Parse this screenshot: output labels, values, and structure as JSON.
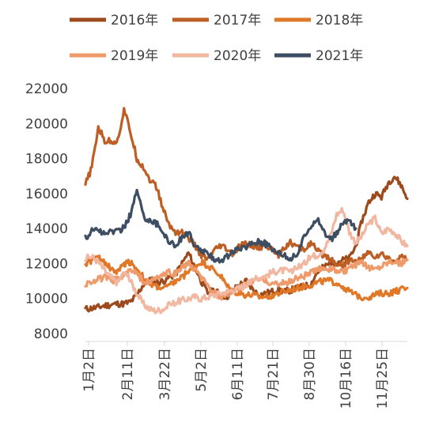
{
  "chart_data": {
    "type": "line",
    "title": "",
    "xlabel": "",
    "ylabel": "",
    "ylim": [
      8000,
      22000
    ],
    "yticks": [
      8000,
      10000,
      12000,
      14000,
      16000,
      18000,
      20000,
      22000
    ],
    "xticks": [
      "1月2日",
      "2月11日",
      "3月22日",
      "5月2日",
      "6月11日",
      "7月21日",
      "8月30日",
      "10月16日",
      "11月25日"
    ],
    "grid": false,
    "legend_position": "top",
    "x_positions": [
      0,
      1,
      2,
      3,
      4,
      5,
      6,
      7,
      8,
      9,
      10,
      11,
      12,
      13,
      14,
      15,
      16,
      17,
      18,
      19,
      20,
      21,
      22,
      23,
      24,
      25,
      26,
      27,
      28,
      29,
      30,
      31,
      32,
      33,
      34,
      35,
      36,
      37,
      38,
      39,
      40,
      41,
      42,
      43,
      44,
      45,
      46,
      47,
      48,
      49,
      50
    ],
    "series": [
      {
        "name": "2016年",
        "color": "#9C4A1C",
        "values": [
          9400,
          9450,
          9500,
          9600,
          9650,
          9700,
          9700,
          9800,
          10200,
          10800,
          11100,
          10900,
          11000,
          11200,
          11400,
          12000,
          12600,
          11800,
          11000,
          10300,
          10500,
          10200,
          10100,
          10500,
          10800,
          11000,
          10500,
          10200,
          10300,
          10400,
          10500,
          10400,
          10500,
          10600,
          10700,
          10800,
          11500,
          11800,
          12000,
          12100,
          12200,
          12300,
          13000,
          14500,
          15500,
          16000,
          15800,
          16600,
          17000,
          16500,
          15700
        ]
      },
      {
        "name": "2017年",
        "color": "#BD5E24",
        "values": [
          16500,
          17500,
          19800,
          19000,
          19000,
          19000,
          20800,
          19500,
          18000,
          17500,
          16800,
          16400,
          15200,
          14200,
          13800,
          13800,
          13500,
          13000,
          12500,
          12200,
          12700,
          13000,
          12800,
          12500,
          13000,
          13100,
          13000,
          12900,
          13100,
          12800,
          12500,
          13000,
          13200,
          12900,
          12800,
          13200,
          12700,
          12500,
          12300,
          12000,
          11900,
          12200,
          12100,
          12300,
          12600,
          12400,
          12500,
          12300,
          12100,
          12400,
          12200
        ]
      },
      {
        "name": "2018年",
        "color": "#E07828",
        "values": [
          12000,
          12200,
          12300,
          12100,
          11700,
          11500,
          12000,
          12100,
          11700,
          11200,
          10800,
          10700,
          10600,
          10700,
          11000,
          11200,
          11600,
          11800,
          12100,
          11900,
          11600,
          11300,
          10700,
          10400,
          10300,
          10200,
          10200,
          10100,
          10100,
          10200,
          10300,
          10400,
          10500,
          10600,
          10700,
          10800,
          10900,
          11000,
          11000,
          10900,
          10700,
          10400,
          10200,
          10100,
          10100,
          10200,
          10300,
          10300,
          10400,
          10500,
          10600
        ]
      },
      {
        "name": "2019年",
        "color": "#EE9A6A",
        "values": [
          10800,
          11000,
          11100,
          11200,
          11000,
          11100,
          11300,
          11600,
          11400,
          11000,
          10900,
          11200,
          11300,
          11500,
          11400,
          11800,
          12000,
          11600,
          11200,
          10700,
          10300,
          10100,
          10200,
          10400,
          10600,
          10800,
          11000,
          11100,
          11000,
          10900,
          10800,
          10900,
          11000,
          11200,
          11300,
          11500,
          11600,
          11800,
          11700,
          11600,
          11500,
          11700,
          11900,
          12000,
          11800,
          11700,
          11900,
          12100,
          12200,
          12000,
          12200
        ]
      },
      {
        "name": "2020年",
        "color": "#F2B7A0",
        "values": [
          12300,
          12400,
          12100,
          11600,
          11200,
          10900,
          11500,
          11000,
          10300,
          9700,
          9400,
          9300,
          9400,
          9600,
          9800,
          9900,
          10000,
          10100,
          10000,
          10100,
          10200,
          10300,
          10400,
          10500,
          10600,
          10800,
          11000,
          11200,
          11300,
          11500,
          11600,
          11600,
          11500,
          11800,
          12000,
          12400,
          12500,
          12800,
          13500,
          14800,
          15100,
          13800,
          13200,
          13600,
          14300,
          14600,
          13700,
          14000,
          13800,
          13300,
          13000
        ]
      },
      {
        "name": "2021年",
        "color": "#3D4E63",
        "values": [
          13400,
          13900,
          14000,
          13600,
          13900,
          13800,
          14100,
          14800,
          16200,
          14700,
          14500,
          14300,
          13800,
          13300,
          13000,
          13500,
          13800,
          12900,
          12800,
          12500,
          12300,
          12200,
          12400,
          12700,
          12800,
          13000,
          13200,
          13300,
          13100,
          12800,
          12700,
          12400,
          12300,
          12600,
          13500,
          14200,
          14600,
          13900,
          13300,
          13700,
          14300,
          14500,
          14000
        ]
      }
    ]
  }
}
